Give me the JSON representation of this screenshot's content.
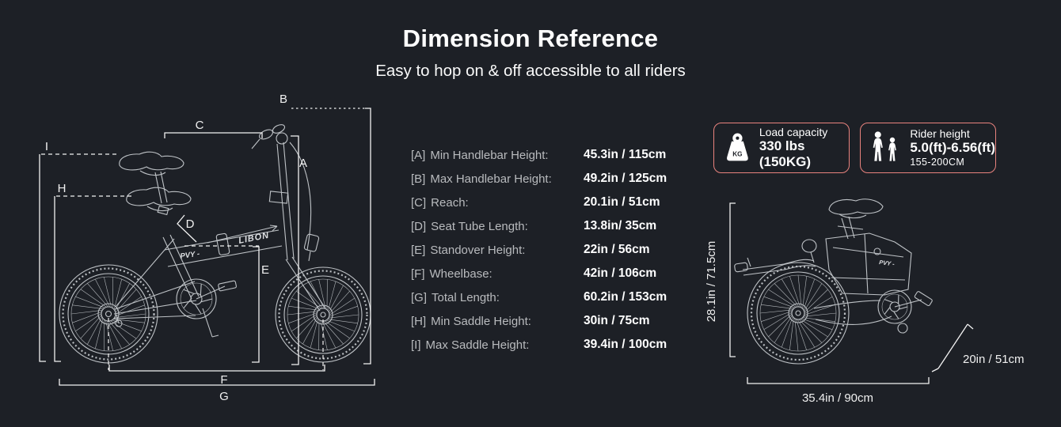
{
  "page": {
    "title": "Dimension Reference",
    "subtitle": "Easy to hop on & off accessible to all riders"
  },
  "specs": {
    "rows": [
      {
        "letter": "[A]",
        "label": "Min Handlebar Height:",
        "value": "45.3in / 115cm"
      },
      {
        "letter": "[B]",
        "label": "Max Handlebar Height:",
        "value": "49.2in / 125cm"
      },
      {
        "letter": "[C]",
        "label": "Reach:",
        "value": "20.1in / 51cm"
      },
      {
        "letter": "[D]",
        "label": "Seat Tube Length:",
        "value": "13.8in/ 35cm"
      },
      {
        "letter": "[E]",
        "label": "Standover Height:",
        "value": "22in / 56cm"
      },
      {
        "letter": "[F]",
        "label": "Wheelbase:",
        "value": "42in / 106cm"
      },
      {
        "letter": "[G]",
        "label": "Total Length:",
        "value": "60.2in / 153cm"
      },
      {
        "letter": "[H]",
        "label": "Min Saddle Height:",
        "value": "30in / 75cm"
      },
      {
        "letter": "[I]",
        "label": "Max Saddle Height:",
        "value": "39.4in / 100cm"
      }
    ]
  },
  "badges": {
    "load_capacity": {
      "icon": "kg-weight-icon",
      "icon_text": "KG",
      "title": "Load capacity",
      "value": "330 lbs (150KG)"
    },
    "rider_height": {
      "icon": "rider-silhouettes-icon",
      "title": "Rider height",
      "value": "5.0(ft)-6.56(ft)",
      "range": "155-200CM"
    }
  },
  "side_bike_diagram": {
    "labels": {
      "a": "A",
      "b": "B",
      "c": "C",
      "d": "D",
      "e": "E",
      "f": "F",
      "g": "G",
      "h": "H",
      "i": "I"
    },
    "frame_logo_model": "LIBON",
    "frame_logo_brand": "PVY -"
  },
  "folded_bike_diagram": {
    "height": "28.1in / 71.5cm",
    "length": "35.4in / 90cm",
    "wheel": "20in / 51cm",
    "frame_logo_brand": "PVY -"
  },
  "colors": {
    "background": "#1d2026",
    "badge_border": "#e9837e",
    "line_art": "#bfc3c7",
    "dimension_lines": "#f2f2f2",
    "label_text": "#b9bbbe",
    "value_text": "#ffffff"
  }
}
